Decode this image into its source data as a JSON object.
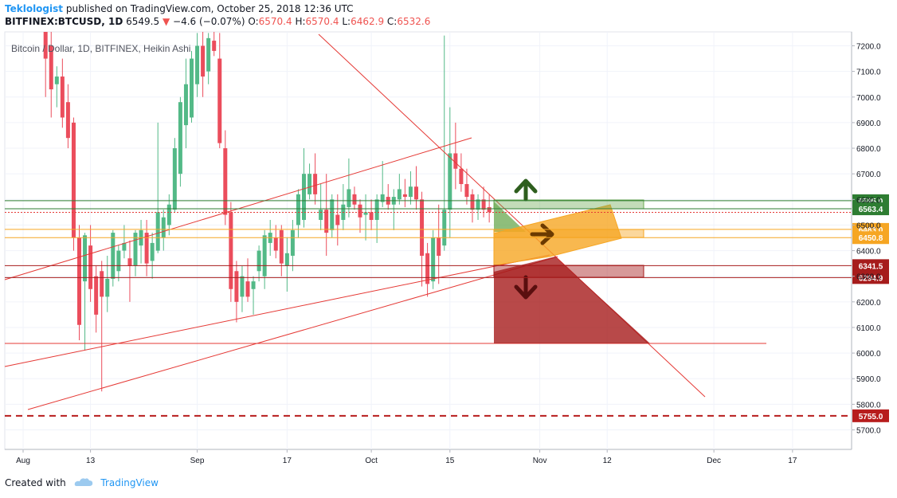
{
  "header": {
    "author": "Teklologist",
    "published": "published on TradingView.com, October 25, 2018 12:36 UTC",
    "symbol": "BITFINEX:BTCUSD, 1D",
    "last": "6549.5",
    "change_arrow": "▼",
    "change": "−4.6 (−0.07%)",
    "o_label": "O:",
    "o_value": "6570.4",
    "h_label": "H:",
    "h_value": "6570.4",
    "l_label": "L:",
    "l_value": "6462.9",
    "c_label": "C:",
    "c_value": "6532.6"
  },
  "footer": {
    "created_with": "Created with",
    "brand": "TradingView"
  },
  "colors": {
    "up": "#53b987",
    "down": "#eb4d5c",
    "trend": "#e53935",
    "green_zone": "#6aa84f",
    "orange_zone": "#f6a623",
    "red_zone": "#a61c1c"
  },
  "chart_data": {
    "type": "candlestick",
    "title": "Bitcoin / Dollar, 1D, BITFINEX, Heikin Ashi",
    "ylim": [
      5620,
      7250
    ],
    "y_ticks": [
      5700,
      5800,
      5900,
      6000,
      6100,
      6200,
      6300,
      6400,
      6500,
      6600,
      6700,
      6800,
      6900,
      7000,
      7100,
      7200
    ],
    "y_tick_labels": [
      "5700.0",
      "5800.0",
      "5900.0",
      "6000.0",
      "6100.0",
      "6200.0",
      "6300.0",
      "6400.0",
      "6500.0",
      "6600.0",
      "6700.0",
      "6800.0",
      "6900.0",
      "7000.0",
      "7100.0",
      "7200.0"
    ],
    "x_ticks": [
      "Aug",
      "13",
      "Sep",
      "17",
      "Oct",
      "15",
      "Nov",
      "12",
      "Dec",
      "17"
    ],
    "x_tick_days": [
      0,
      12,
      31,
      47,
      62,
      76,
      92,
      104,
      123,
      137
    ],
    "price_levels": [
      {
        "label": "6595.0",
        "value": 6595.0,
        "color": "#2e7d32"
      },
      {
        "label": "6563.4",
        "value": 6563.4,
        "color": "#2e7d32"
      },
      {
        "label": "6483.0",
        "value": 6483.0,
        "color": "#f6a623"
      },
      {
        "label": "6450.8",
        "value": 6450.8,
        "color": "#f6a623"
      },
      {
        "label": "6341.5",
        "value": 6341.5,
        "color": "#a61c1c"
      },
      {
        "label": "6294.9",
        "value": 6294.9,
        "color": "#a61c1c"
      },
      {
        "label": "5755.0",
        "value": 5755.0,
        "color": "#b71c1c"
      }
    ],
    "candles": [
      [
        4,
        7400,
        7500,
        7000,
        7150
      ],
      [
        5,
        7200,
        7300,
        6920,
        7030
      ],
      [
        6,
        7050,
        7120,
        6960,
        7080
      ],
      [
        7,
        7080,
        7150,
        6880,
        6920
      ],
      [
        8,
        6980,
        7050,
        6800,
        6840
      ],
      [
        9,
        6900,
        6920,
        6400,
        6450
      ],
      [
        10,
        6450,
        6500,
        6050,
        6110
      ],
      [
        11,
        6280,
        6470,
        6010,
        6460
      ],
      [
        12,
        6420,
        6500,
        6200,
        6250
      ],
      [
        13,
        6300,
        6340,
        6080,
        6150
      ],
      [
        14,
        6320,
        6360,
        5850,
        6220
      ],
      [
        15,
        6220,
        6380,
        6160,
        6290
      ],
      [
        16,
        6290,
        6480,
        6260,
        6470
      ],
      [
        17,
        6320,
        6420,
        6280,
        6400
      ],
      [
        18,
        6400,
        6500,
        6370,
        6430
      ],
      [
        19,
        6370,
        6440,
        6200,
        6340
      ],
      [
        20,
        6340,
        6480,
        6300,
        6470
      ],
      [
        21,
        6420,
        6520,
        6350,
        6480
      ],
      [
        22,
        6470,
        6520,
        6300,
        6350
      ],
      [
        23,
        6360,
        6470,
        6290,
        6430
      ],
      [
        24,
        6400,
        6900,
        6390,
        6550
      ],
      [
        25,
        6450,
        6560,
        6400,
        6530
      ],
      [
        26,
        6500,
        6620,
        6460,
        6580
      ],
      [
        27,
        6560,
        6840,
        6550,
        6800
      ],
      [
        28,
        6700,
        7000,
        6650,
        6980
      ],
      [
        29,
        6890,
        7150,
        6800,
        7050
      ],
      [
        30,
        6920,
        7180,
        6900,
        7150
      ],
      [
        31,
        7050,
        7250,
        7000,
        7200
      ],
      [
        32,
        7200,
        7260,
        7000,
        7080
      ],
      [
        33,
        7100,
        7250,
        7050,
        7230
      ],
      [
        34,
        7220,
        7260,
        7160,
        7180
      ],
      [
        35,
        7150,
        7250,
        6800,
        6820
      ],
      [
        36,
        6800,
        6870,
        6500,
        6540
      ],
      [
        37,
        6550,
        6590,
        6200,
        6250
      ],
      [
        38,
        6320,
        6360,
        6120,
        6200
      ],
      [
        39,
        6220,
        6340,
        6160,
        6300
      ],
      [
        40,
        6280,
        6370,
        6200,
        6220
      ],
      [
        41,
        6250,
        6300,
        6150,
        6280
      ],
      [
        42,
        6320,
        6420,
        6280,
        6400
      ],
      [
        43,
        6300,
        6480,
        6250,
        6460
      ],
      [
        44,
        6430,
        6520,
        6380,
        6470
      ],
      [
        45,
        6450,
        6500,
        6370,
        6400
      ],
      [
        46,
        6480,
        6500,
        6300,
        6350
      ],
      [
        47,
        6340,
        6450,
        6240,
        6390
      ],
      [
        48,
        6380,
        6520,
        6320,
        6480
      ],
      [
        49,
        6500,
        6640,
        6450,
        6620
      ],
      [
        50,
        6520,
        6800,
        6490,
        6700
      ],
      [
        51,
        6620,
        6740,
        6600,
        6700
      ],
      [
        52,
        6700,
        6780,
        6580,
        6620
      ],
      [
        53,
        6520,
        6660,
        6480,
        6560
      ],
      [
        54,
        6560,
        6700,
        6380,
        6470
      ],
      [
        55,
        6480,
        6620,
        6450,
        6600
      ],
      [
        56,
        6540,
        6620,
        6420,
        6500
      ],
      [
        57,
        6520,
        6660,
        6480,
        6580
      ],
      [
        58,
        6570,
        6760,
        6530,
        6640
      ],
      [
        59,
        6620,
        6650,
        6560,
        6580
      ],
      [
        60,
        6580,
        6600,
        6470,
        6530
      ],
      [
        61,
        6540,
        6620,
        6440,
        6550
      ],
      [
        62,
        6550,
        6600,
        6480,
        6520
      ],
      [
        63,
        6520,
        6620,
        6430,
        6600
      ],
      [
        64,
        6590,
        6750,
        6570,
        6620
      ],
      [
        65,
        6610,
        6660,
        6560,
        6580
      ],
      [
        66,
        6580,
        6640,
        6480,
        6610
      ],
      [
        67,
        6600,
        6700,
        6580,
        6640
      ],
      [
        68,
        6620,
        6680,
        6570,
        6610
      ],
      [
        69,
        6610,
        6710,
        6580,
        6650
      ],
      [
        70,
        6650,
        6730,
        6560,
        6600
      ],
      [
        71,
        6600,
        6630,
        6260,
        6380
      ],
      [
        72,
        6390,
        6430,
        6220,
        6270
      ],
      [
        73,
        6280,
        6480,
        6250,
        6450
      ],
      [
        74,
        6450,
        6580,
        6270,
        6380
      ],
      [
        75,
        6420,
        7240,
        6400,
        6560
      ],
      [
        76,
        6560,
        6960,
        6450,
        6780
      ],
      [
        77,
        6780,
        6900,
        6640,
        6720
      ],
      [
        78,
        6720,
        6780,
        6630,
        6660
      ],
      [
        79,
        6660,
        6720,
        6580,
        6610
      ],
      [
        80,
        6620,
        6640,
        6510,
        6560
      ],
      [
        81,
        6560,
        6620,
        6520,
        6600
      ],
      [
        82,
        6600,
        6650,
        6530,
        6560
      ],
      [
        83,
        6570,
        6620,
        6510,
        6550
      ]
    ]
  }
}
